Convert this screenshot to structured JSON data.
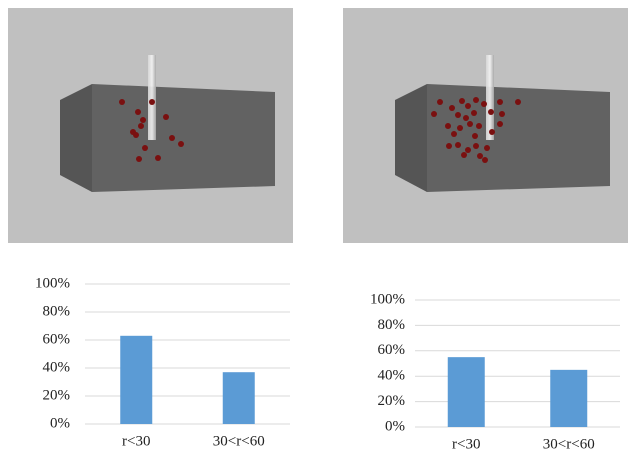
{
  "chart_data": [
    {
      "type": "bar",
      "categories": [
        "r<30",
        "30<r<60"
      ],
      "values": [
        63,
        37
      ],
      "color": "#5b9bd5",
      "ylim": [
        0,
        100
      ],
      "yticks": [
        {
          "value": 0,
          "label": "0%"
        },
        {
          "value": 20,
          "label": "20%"
        },
        {
          "value": 40,
          "label": "40%"
        },
        {
          "value": 60,
          "label": "60%"
        },
        {
          "value": 80,
          "label": "80%"
        },
        {
          "value": 100,
          "label": "100%"
        }
      ],
      "grid": true
    },
    {
      "type": "bar",
      "categories": [
        "r<30",
        "30<r<60"
      ],
      "values": [
        55,
        45
      ],
      "color": "#5b9bd5",
      "ylim": [
        0,
        100
      ],
      "yticks": [
        {
          "value": 0,
          "label": "0%"
        },
        {
          "value": 20,
          "label": "20%"
        },
        {
          "value": 40,
          "label": "40%"
        },
        {
          "value": 60,
          "label": "60%"
        },
        {
          "value": 80,
          "label": "80%"
        },
        {
          "value": 100,
          "label": "100%"
        }
      ],
      "grid": true
    }
  ]
}
